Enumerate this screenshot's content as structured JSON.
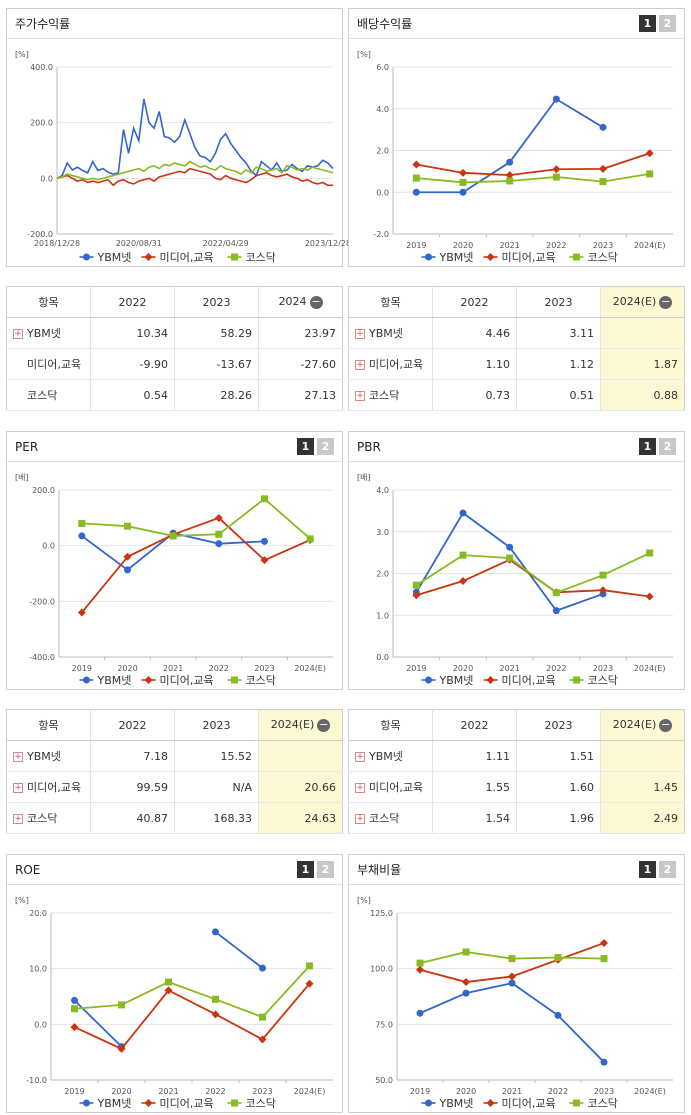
{
  "panels": {
    "stock": {
      "title": "주가수익률",
      "unit": "[%]",
      "chart_data": {
        "type": "line",
        "yticks": [
          "400.0",
          "200.0",
          "0.0",
          "-200.0"
        ],
        "ylim": [
          -200,
          400
        ],
        "xticks": [
          "2018/12/28",
          "2020/08/31",
          "2022/04/29",
          "2023/12/28"
        ],
        "series": [
          {
            "name": "YBM넷",
            "color": "#3366cc",
            "values": [
              0,
              10,
              55,
              30,
              40,
              28,
              20,
              60,
              28,
              35,
              22,
              15,
              20,
              175,
              90,
              180,
              135,
              285,
              200,
              180,
              240,
              150,
              145,
              130,
              150,
              210,
              160,
              110,
              80,
              75,
              60,
              90,
              140,
              160,
              125,
              100,
              75,
              55,
              25,
              10,
              60,
              45,
              30,
              55,
              25,
              30,
              50,
              35,
              25,
              45,
              40,
              45,
              65,
              55,
              35
            ]
          },
          {
            "name": "미디어,교육",
            "color": "#cc3311",
            "values": [
              0,
              5,
              10,
              0,
              -10,
              -5,
              -15,
              -10,
              -15,
              -10,
              -5,
              -25,
              -10,
              -5,
              -15,
              -20,
              -10,
              -5,
              0,
              -10,
              5,
              10,
              15,
              20,
              25,
              20,
              35,
              30,
              25,
              20,
              15,
              0,
              -5,
              10,
              0,
              -5,
              -10,
              -15,
              -5,
              10,
              15,
              20,
              10,
              5,
              10,
              15,
              5,
              0,
              -10,
              -5,
              -15,
              -20,
              -15,
              -25,
              -25
            ]
          },
          {
            "name": "코스닥",
            "color": "#88bb22",
            "values": [
              0,
              5,
              15,
              10,
              5,
              0,
              -5,
              0,
              -5,
              0,
              5,
              10,
              15,
              20,
              25,
              30,
              35,
              25,
              40,
              45,
              35,
              50,
              45,
              55,
              50,
              45,
              60,
              50,
              40,
              45,
              35,
              30,
              45,
              35,
              30,
              25,
              15,
              30,
              20,
              40,
              35,
              25,
              30,
              35,
              20,
              45,
              40,
              30,
              35,
              30,
              40,
              35,
              30,
              25,
              20
            ]
          }
        ]
      }
    },
    "dividend": {
      "title": "배당수익률",
      "unit": "[%]",
      "chart_data": {
        "type": "line",
        "categories": [
          "2019",
          "2020",
          "2021",
          "2022",
          "2023",
          "2024(E)"
        ],
        "yticks": [
          "6.0",
          "4.0",
          "2.0",
          "0.0",
          "-2.0"
        ],
        "ylim": [
          -2,
          6
        ],
        "series": [
          {
            "name": "YBM넷",
            "color": "#3366cc",
            "values": [
              0.0,
              0.0,
              1.44,
              4.46,
              3.11,
              null
            ]
          },
          {
            "name": "미디어,교육",
            "color": "#cc3311",
            "values": [
              1.33,
              0.93,
              0.82,
              1.1,
              1.12,
              1.87
            ]
          },
          {
            "name": "코스닥",
            "color": "#88bb22",
            "values": [
              0.68,
              0.47,
              0.54,
              0.73,
              0.51,
              0.88
            ]
          }
        ]
      }
    },
    "per": {
      "title": "PER",
      "unit": "[배]",
      "chart_data": {
        "type": "line",
        "categories": [
          "2019",
          "2020",
          "2021",
          "2022",
          "2023",
          "2024(E)"
        ],
        "yticks": [
          "200.0",
          "0.0",
          "-200.0",
          "-400.0"
        ],
        "ylim": [
          -400,
          200
        ],
        "series": [
          {
            "name": "YBM넷",
            "color": "#3366cc",
            "values": [
              35,
              -87,
              45,
              7.18,
              15.52,
              null
            ]
          },
          {
            "name": "미디어,교육",
            "color": "#cc3311",
            "values": [
              -240,
              -40,
              40,
              99.59,
              -52,
              20.66
            ]
          },
          {
            "name": "코스닥",
            "color": "#88bb22",
            "values": [
              80,
              70,
              35,
              40.87,
              168.33,
              24.63
            ]
          }
        ]
      }
    },
    "pbr": {
      "title": "PBR",
      "unit": "[배]",
      "chart_data": {
        "type": "line",
        "categories": [
          "2019",
          "2020",
          "2021",
          "2022",
          "2023",
          "2024(E)"
        ],
        "yticks": [
          "4.0",
          "3.0",
          "2.0",
          "1.0",
          "0.0"
        ],
        "ylim": [
          0,
          4
        ],
        "series": [
          {
            "name": "YBM넷",
            "color": "#3366cc",
            "values": [
              1.55,
              3.45,
              2.63,
              1.11,
              1.51,
              null
            ]
          },
          {
            "name": "미디어,교육",
            "color": "#cc3311",
            "values": [
              1.48,
              1.82,
              2.33,
              1.55,
              1.6,
              1.45
            ]
          },
          {
            "name": "코스닥",
            "color": "#88bb22",
            "values": [
              1.72,
              2.44,
              2.37,
              1.54,
              1.96,
              2.49
            ]
          }
        ]
      }
    },
    "roe": {
      "title": "ROE",
      "unit": "[%]",
      "chart_data": {
        "type": "line",
        "categories": [
          "2019",
          "2020",
          "2021",
          "2022",
          "2023",
          "2024(E)"
        ],
        "yticks": [
          "20.0",
          "10.0",
          "0.0",
          "-10.0"
        ],
        "ylim": [
          -10,
          20
        ],
        "series": [
          {
            "name": "YBM넷",
            "color": "#3366cc",
            "values": [
              4.3,
              -4.0,
              null,
              16.6,
              10.1,
              null
            ]
          },
          {
            "name": "미디어,교육",
            "color": "#cc3311",
            "values": [
              -0.5,
              -4.4,
              6.1,
              1.8,
              -2.7,
              7.3
            ]
          },
          {
            "name": "코스닥",
            "color": "#88bb22",
            "values": [
              2.8,
              3.5,
              7.6,
              4.5,
              1.3,
              10.5
            ]
          }
        ]
      }
    },
    "debt": {
      "title": "부채비율",
      "unit": "[%]",
      "chart_data": {
        "type": "line",
        "categories": [
          "2019",
          "2020",
          "2021",
          "2022",
          "2023",
          "2024(E)"
        ],
        "yticks": [
          "125.0",
          "100.0",
          "75.0",
          "50.0"
        ],
        "ylim": [
          50,
          125
        ],
        "series": [
          {
            "name": "YBM넷",
            "color": "#3366cc",
            "values": [
              80.0,
              89.0,
              93.5,
              79.0,
              58.0,
              null
            ]
          },
          {
            "name": "미디어,교육",
            "color": "#cc3311",
            "values": [
              99.5,
              94.0,
              96.5,
              104.0,
              111.5,
              null
            ]
          },
          {
            "name": "코스닥",
            "color": "#88bb22",
            "values": [
              102.5,
              107.5,
              104.5,
              105.0,
              104.5,
              null
            ]
          }
        ]
      }
    }
  },
  "legend": [
    "YBM넷",
    "미디어,교육",
    "코스닥"
  ],
  "btn1": "1",
  "btn2": "2",
  "tables": {
    "stock": {
      "headers": [
        "항목",
        "2022",
        "2023",
        "2024"
      ],
      "rows": [
        {
          "name": "YBM넷",
          "plus": true,
          "v": [
            "10.34",
            "58.29",
            "23.97"
          ]
        },
        {
          "name": "미디어,교육",
          "plus": false,
          "v": [
            "-9.90",
            "-13.67",
            "-27.60"
          ]
        },
        {
          "name": "코스닥",
          "plus": false,
          "v": [
            "0.54",
            "28.26",
            "27.13"
          ]
        }
      ]
    },
    "dividend": {
      "headers": [
        "항목",
        "2022",
        "2023",
        "2024(E)"
      ],
      "rows": [
        {
          "name": "YBM넷",
          "plus": true,
          "v": [
            "4.46",
            "3.11",
            ""
          ]
        },
        {
          "name": "미디어,교육",
          "plus": true,
          "v": [
            "1.10",
            "1.12",
            "1.87"
          ]
        },
        {
          "name": "코스닥",
          "plus": true,
          "v": [
            "0.73",
            "0.51",
            "0.88"
          ]
        }
      ]
    },
    "per": {
      "headers": [
        "항목",
        "2022",
        "2023",
        "2024(E)"
      ],
      "rows": [
        {
          "name": "YBM넷",
          "plus": true,
          "v": [
            "7.18",
            "15.52",
            ""
          ]
        },
        {
          "name": "미디어,교육",
          "plus": true,
          "v": [
            "99.59",
            "N/A",
            "20.66"
          ]
        },
        {
          "name": "코스닥",
          "plus": true,
          "v": [
            "40.87",
            "168.33",
            "24.63"
          ]
        }
      ]
    },
    "pbr": {
      "headers": [
        "항목",
        "2022",
        "2023",
        "2024(E)"
      ],
      "rows": [
        {
          "name": "YBM넷",
          "plus": true,
          "v": [
            "1.11",
            "1.51",
            ""
          ]
        },
        {
          "name": "미디어,교육",
          "plus": true,
          "v": [
            "1.55",
            "1.60",
            "1.45"
          ]
        },
        {
          "name": "코스닥",
          "plus": true,
          "v": [
            "1.54",
            "1.96",
            "2.49"
          ]
        }
      ]
    }
  }
}
